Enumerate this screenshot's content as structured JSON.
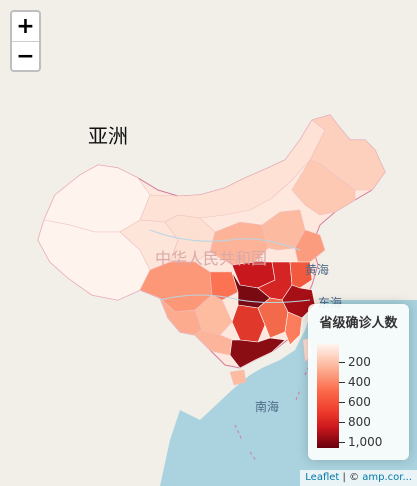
{
  "zoom": {
    "in_label": "+",
    "out_label": "−"
  },
  "labels": {
    "continent": "亚洲",
    "country": "中华人民共和国",
    "yellow_sea": "黄海",
    "east_sea": "东海",
    "south_sea": "南海"
  },
  "legend": {
    "title": "省级确诊人数",
    "ticks": [
      "200",
      "400",
      "600",
      "800",
      "1,000"
    ],
    "color_scale": [
      "#fff5f0",
      "#fdbba0",
      "#fb6a4a",
      "#ef3b2c",
      "#cb181d",
      "#67000d"
    ]
  },
  "attribution": {
    "leaflet": "Leaflet",
    "separator": " | © ",
    "source": "amp.cor..."
  },
  "colors": {
    "sea": "#aad3df",
    "land": "#f2efe9",
    "border": "#d27b9d"
  }
}
